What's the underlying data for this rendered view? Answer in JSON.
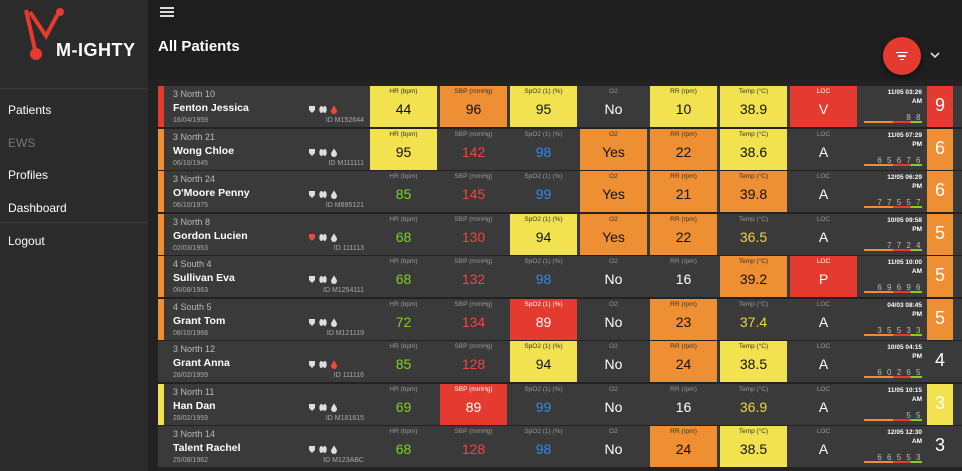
{
  "app": {
    "logo_text": "M-IGHTY",
    "page_title": "All Patients"
  },
  "nav": [
    {
      "label": "Patients",
      "muted": false
    },
    {
      "label": "EWS",
      "muted": true
    },
    {
      "label": "Profiles",
      "muted": false
    },
    {
      "label": "Dashboard",
      "muted": false
    },
    {
      "label": "Logout",
      "muted": false
    }
  ],
  "colors": {
    "yellow": "#f2e24f",
    "orange": "#ee8f33",
    "red": "#e53a2f",
    "neutral": "#3a3a3a"
  },
  "patients": [
    {
      "ward": "3 North 10",
      "name": "Fenton Jessica",
      "dob": "16/04/1959",
      "pid": "ID M152644",
      "stripe": "#e53a2f",
      "icons": [
        "white",
        "white",
        "red"
      ],
      "vitals": [
        {
          "label": "HR (bpm)",
          "value": "44",
          "bg": "yellow",
          "tc": ""
        },
        {
          "label": "SBP (mmHg)",
          "value": "96",
          "bg": "orange",
          "tc": ""
        },
        {
          "label": "SpO2 (1) (%)",
          "value": "95",
          "bg": "yellow",
          "tc": ""
        },
        {
          "label": "O2",
          "value": "No",
          "bg": "none",
          "tc": "white"
        },
        {
          "label": "RR (rpm)",
          "value": "10",
          "bg": "yellow",
          "tc": ""
        },
        {
          "label": "Temp (°C)",
          "value": "38.9",
          "bg": "yellow",
          "tc": ""
        },
        {
          "label": "LOC",
          "value": "V",
          "bg": "red",
          "tc": ""
        }
      ],
      "ts_date": "11/05 03:26",
      "ts_ampm": "AM",
      "trend": "8 8",
      "score": "9",
      "score_bg": "red"
    },
    {
      "ward": "3 North 21",
      "name": "Wong Chloe",
      "dob": "06/10/1945",
      "pid": "ID M111111",
      "stripe": "#ee8f33",
      "icons": [
        "white",
        "white",
        "white"
      ],
      "vitals": [
        {
          "label": "HR (bpm)",
          "value": "95",
          "bg": "yellow",
          "tc": ""
        },
        {
          "label": "SBP (mmHg)",
          "value": "142",
          "bg": "none",
          "tc": "red"
        },
        {
          "label": "SpO2 (1) (%)",
          "value": "98",
          "bg": "none",
          "tc": "blue"
        },
        {
          "label": "O2",
          "value": "Yes",
          "bg": "orange",
          "tc": ""
        },
        {
          "label": "RR (rpm)",
          "value": "22",
          "bg": "orange",
          "tc": ""
        },
        {
          "label": "Temp (°C)",
          "value": "38.6",
          "bg": "yellow",
          "tc": ""
        },
        {
          "label": "LOC",
          "value": "A",
          "bg": "none",
          "tc": "white"
        }
      ],
      "ts_date": "11/05 07:29",
      "ts_ampm": "PM",
      "trend": "6 5 6 7 6",
      "score": "6",
      "score_bg": "orange"
    },
    {
      "ward": "3 North 24",
      "name": "O'Moore Penny",
      "dob": "06/10/1975",
      "pid": "ID M695121",
      "stripe": "#ee8f33",
      "icons": [
        "white",
        "white",
        "white"
      ],
      "vitals": [
        {
          "label": "HR (bpm)",
          "value": "85",
          "bg": "none",
          "tc": "green"
        },
        {
          "label": "SBP (mmHg)",
          "value": "145",
          "bg": "none",
          "tc": "red"
        },
        {
          "label": "SpO2 (1) (%)",
          "value": "99",
          "bg": "none",
          "tc": "blue"
        },
        {
          "label": "O2",
          "value": "Yes",
          "bg": "orange",
          "tc": ""
        },
        {
          "label": "RR (rpm)",
          "value": "21",
          "bg": "orange",
          "tc": ""
        },
        {
          "label": "Temp (°C)",
          "value": "39.8",
          "bg": "orange",
          "tc": ""
        },
        {
          "label": "LOC",
          "value": "A",
          "bg": "none",
          "tc": "white"
        }
      ],
      "ts_date": "12/05 06:29",
      "ts_ampm": "PM",
      "trend": "7 7 5 5 7",
      "score": "6",
      "score_bg": "orange"
    },
    {
      "ward": "3 North 8",
      "name": "Gordon Lucien",
      "dob": "02/03/1953",
      "pid": "ID 111113",
      "stripe": "#ee8f33",
      "icons": [
        "red",
        "white",
        "white"
      ],
      "vitals": [
        {
          "label": "HR (bpm)",
          "value": "68",
          "bg": "none",
          "tc": "green"
        },
        {
          "label": "SBP (mmHg)",
          "value": "130",
          "bg": "none",
          "tc": "red"
        },
        {
          "label": "SpO2 (1) (%)",
          "value": "94",
          "bg": "yellow",
          "tc": ""
        },
        {
          "label": "O2",
          "value": "Yes",
          "bg": "orange",
          "tc": ""
        },
        {
          "label": "RR (rpm)",
          "value": "22",
          "bg": "orange",
          "tc": ""
        },
        {
          "label": "Temp (°C)",
          "value": "36.5",
          "bg": "none",
          "tc": "yellow"
        },
        {
          "label": "LOC",
          "value": "A",
          "bg": "none",
          "tc": "white"
        }
      ],
      "ts_date": "10/05 09:58",
      "ts_ampm": "PM",
      "trend": "7 7 2 4",
      "score": "5",
      "score_bg": "orange"
    },
    {
      "ward": "4 South 4",
      "name": "Sullivan Eva",
      "dob": "06/08/1963",
      "pid": "ID M1254111",
      "stripe": "#ee8f33",
      "icons": [
        "white",
        "white",
        "white"
      ],
      "vitals": [
        {
          "label": "HR (bpm)",
          "value": "68",
          "bg": "none",
          "tc": "green"
        },
        {
          "label": "SBP (mmHg)",
          "value": "132",
          "bg": "none",
          "tc": "red"
        },
        {
          "label": "SpO2 (1) (%)",
          "value": "98",
          "bg": "none",
          "tc": "blue"
        },
        {
          "label": "O2",
          "value": "No",
          "bg": "none",
          "tc": "white"
        },
        {
          "label": "RR (rpm)",
          "value": "16",
          "bg": "none",
          "tc": "white"
        },
        {
          "label": "Temp (°C)",
          "value": "39.2",
          "bg": "orange",
          "tc": ""
        },
        {
          "label": "LOC",
          "value": "P",
          "bg": "red",
          "tc": ""
        }
      ],
      "ts_date": "11/05 10:00",
      "ts_ampm": "AM",
      "trend": "6 9 6 9 6",
      "score": "5",
      "score_bg": "orange"
    },
    {
      "ward": "4 South 5",
      "name": "Grant Tom",
      "dob": "08/10/1968",
      "pid": "ID M121119",
      "stripe": "#ee8f33",
      "icons": [
        "white",
        "white",
        "white"
      ],
      "vitals": [
        {
          "label": "HR (bpm)",
          "value": "72",
          "bg": "none",
          "tc": "green"
        },
        {
          "label": "SBP (mmHg)",
          "value": "134",
          "bg": "none",
          "tc": "red"
        },
        {
          "label": "SpO2 (1) (%)",
          "value": "89",
          "bg": "red",
          "tc": ""
        },
        {
          "label": "O2",
          "value": "No",
          "bg": "none",
          "tc": "white"
        },
        {
          "label": "RR (rpm)",
          "value": "23",
          "bg": "orange",
          "tc": ""
        },
        {
          "label": "Temp (°C)",
          "value": "37.4",
          "bg": "none",
          "tc": "yellow"
        },
        {
          "label": "LOC",
          "value": "A",
          "bg": "none",
          "tc": "white"
        }
      ],
      "ts_date": "04/03 08:45",
      "ts_ampm": "PM",
      "trend": "3 5 5 3 3",
      "score": "5",
      "score_bg": "orange"
    },
    {
      "ward": "3 North 12",
      "name": "Grant Anna",
      "dob": "28/02/1959",
      "pid": "ID 111116",
      "stripe": "#3a3a3a",
      "icons": [
        "white",
        "white",
        "red"
      ],
      "vitals": [
        {
          "label": "HR (bpm)",
          "value": "85",
          "bg": "none",
          "tc": "green"
        },
        {
          "label": "SBP (mmHg)",
          "value": "128",
          "bg": "none",
          "tc": "red"
        },
        {
          "label": "SpO2 (1) (%)",
          "value": "94",
          "bg": "yellow",
          "tc": ""
        },
        {
          "label": "O2",
          "value": "No",
          "bg": "none",
          "tc": "white"
        },
        {
          "label": "RR (rpm)",
          "value": "24",
          "bg": "orange",
          "tc": ""
        },
        {
          "label": "Temp (°C)",
          "value": "38.5",
          "bg": "yellow",
          "tc": ""
        },
        {
          "label": "LOC",
          "value": "A",
          "bg": "none",
          "tc": "white"
        }
      ],
      "ts_date": "10/05 04:15",
      "ts_ampm": "PM",
      "trend": "6 0 2 6 5",
      "score": "4",
      "score_bg": "none"
    },
    {
      "ward": "3 North 11",
      "name": "Han Dan",
      "dob": "28/02/1959",
      "pid": "ID M181615",
      "stripe": "#f2e24f",
      "icons": [
        "white",
        "white",
        "white"
      ],
      "vitals": [
        {
          "label": "HR (bpm)",
          "value": "69",
          "bg": "none",
          "tc": "green"
        },
        {
          "label": "SBP (mmHg)",
          "value": "89",
          "bg": "red",
          "tc": ""
        },
        {
          "label": "SpO2 (1) (%)",
          "value": "99",
          "bg": "none",
          "tc": "blue"
        },
        {
          "label": "O2",
          "value": "No",
          "bg": "none",
          "tc": "white"
        },
        {
          "label": "RR (rpm)",
          "value": "16",
          "bg": "none",
          "tc": "white"
        },
        {
          "label": "Temp (°C)",
          "value": "36.9",
          "bg": "none",
          "tc": "yellow"
        },
        {
          "label": "LOC",
          "value": "A",
          "bg": "none",
          "tc": "white"
        }
      ],
      "ts_date": "11/05 10:15",
      "ts_ampm": "AM",
      "trend": "5 5",
      "score": "3",
      "score_bg": "yellow"
    },
    {
      "ward": "3 North 14",
      "name": "Talent Rachel",
      "dob": "25/08/1962",
      "pid": "ID M123ABC",
      "stripe": "#3a3a3a",
      "icons": [
        "white",
        "white",
        "white"
      ],
      "vitals": [
        {
          "label": "HR (bpm)",
          "value": "68",
          "bg": "none",
          "tc": "green"
        },
        {
          "label": "SBP (mmHg)",
          "value": "128",
          "bg": "none",
          "tc": "red"
        },
        {
          "label": "SpO2 (1) (%)",
          "value": "98",
          "bg": "none",
          "tc": "blue"
        },
        {
          "label": "O2",
          "value": "No",
          "bg": "none",
          "tc": "white"
        },
        {
          "label": "RR (rpm)",
          "value": "24",
          "bg": "orange",
          "tc": ""
        },
        {
          "label": "Temp (°C)",
          "value": "38.5",
          "bg": "yellow",
          "tc": ""
        },
        {
          "label": "LOC",
          "value": "A",
          "bg": "none",
          "tc": "white"
        }
      ],
      "ts_date": "12/05 12:30",
      "ts_ampm": "AM",
      "trend": "6 6 5 5 3",
      "score": "3",
      "score_bg": "none"
    }
  ]
}
